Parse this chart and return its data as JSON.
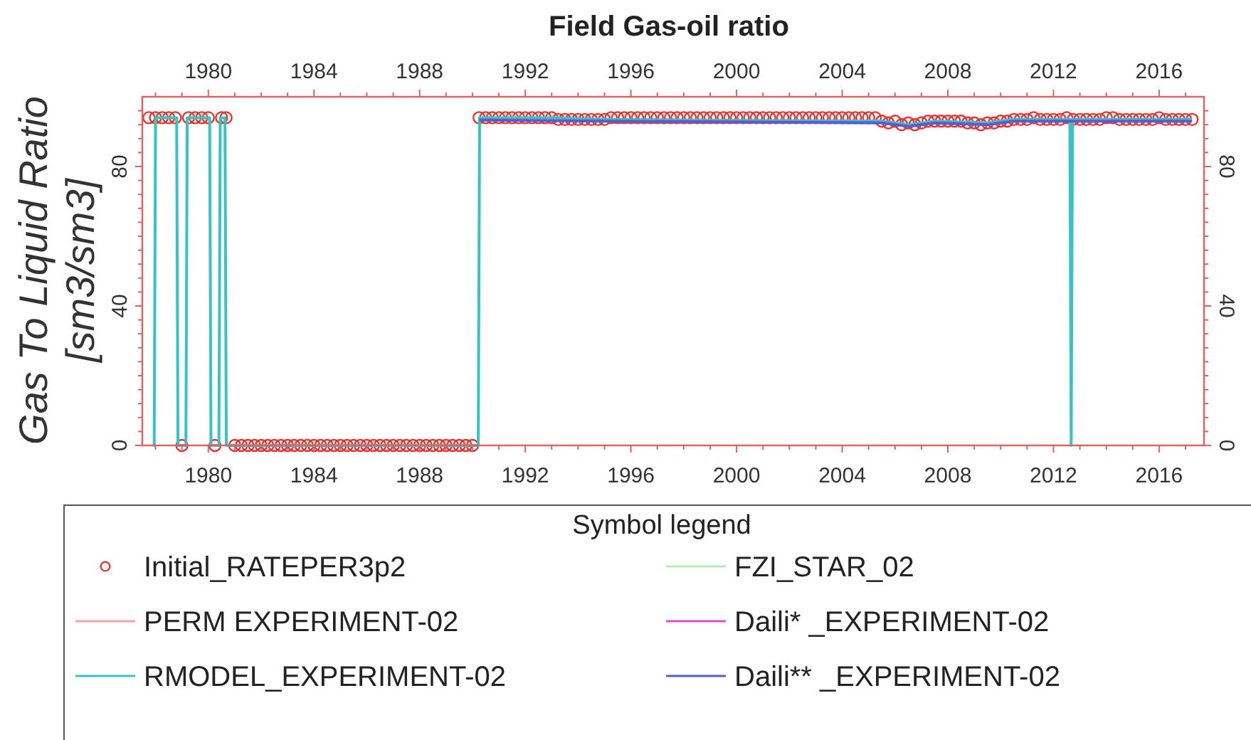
{
  "chart_data": {
    "type": "line",
    "title": "Field Gas-oil ratio",
    "ylabel": "Gas To Liquid Ratio\n[sm3/sm3]",
    "legend_title": "Symbol legend",
    "legend": "bottom",
    "xlim": [
      1977.5,
      2017.7
    ],
    "x2lim": [
      1977.5,
      2017.7
    ],
    "ylim": [
      0,
      100
    ],
    "y2lim": [
      0,
      100
    ],
    "xticks": [
      {
        "value": 1978,
        "label": null
      },
      {
        "value": 1979,
        "label": null
      },
      1980,
      {
        "value": 1981,
        "label": null
      },
      {
        "value": 1982,
        "label": null
      },
      {
        "value": 1983,
        "label": null
      },
      1984,
      {
        "value": 1985,
        "label": null
      },
      {
        "value": 1986,
        "label": null
      },
      {
        "value": 1987,
        "label": null
      },
      1988,
      {
        "value": 1989,
        "label": null
      },
      {
        "value": 1990,
        "label": null
      },
      {
        "value": 1991,
        "label": null
      },
      1992,
      {
        "value": 1993,
        "label": null
      },
      {
        "value": 1994,
        "label": null
      },
      {
        "value": 1995,
        "label": null
      },
      1996,
      {
        "value": 1997,
        "label": null
      },
      {
        "value": 1998,
        "label": null
      },
      {
        "value": 1999,
        "label": null
      },
      2000,
      {
        "value": 2001,
        "label": null
      },
      {
        "value": 2002,
        "label": null
      },
      {
        "value": 2003,
        "label": null
      },
      2004,
      {
        "value": 2005,
        "label": null
      },
      {
        "value": 2006,
        "label": null
      },
      {
        "value": 2007,
        "label": null
      },
      2008,
      {
        "value": 2009,
        "label": null
      },
      {
        "value": 2010,
        "label": null
      },
      {
        "value": 2011,
        "label": null
      },
      2012,
      {
        "value": 2013,
        "label": null
      },
      {
        "value": 2014,
        "label": null
      },
      {
        "value": 2015,
        "label": null
      },
      2016,
      {
        "value": 2017,
        "label": null
      }
    ],
    "x2ticks": [
      {
        "value": 1978,
        "label": null
      },
      {
        "value": 1979,
        "label": null
      },
      1980,
      {
        "value": 1981,
        "label": null
      },
      {
        "value": 1982,
        "label": null
      },
      {
        "value": 1983,
        "label": null
      },
      1984,
      {
        "value": 1985,
        "label": null
      },
      {
        "value": 1986,
        "label": null
      },
      {
        "value": 1987,
        "label": null
      },
      1988,
      {
        "value": 1989,
        "label": null
      },
      {
        "value": 1990,
        "label": null
      },
      {
        "value": 1991,
        "label": null
      },
      1992,
      {
        "value": 1993,
        "label": null
      },
      {
        "value": 1994,
        "label": null
      },
      {
        "value": 1995,
        "label": null
      },
      1996,
      {
        "value": 1997,
        "label": null
      },
      {
        "value": 1998,
        "label": null
      },
      {
        "value": 1999,
        "label": null
      },
      2000,
      {
        "value": 2001,
        "label": null
      },
      {
        "value": 2002,
        "label": null
      },
      {
        "value": 2003,
        "label": null
      },
      2004,
      {
        "value": 2005,
        "label": null
      },
      {
        "value": 2006,
        "label": null
      },
      {
        "value": 2007,
        "label": null
      },
      2008,
      {
        "value": 2009,
        "label": null
      },
      {
        "value": 2010,
        "label": null
      },
      {
        "value": 2011,
        "label": null
      },
      2012,
      {
        "value": 2013,
        "label": null
      },
      {
        "value": 2014,
        "label": null
      },
      {
        "value": 2015,
        "label": null
      },
      2016,
      {
        "value": 2017,
        "label": null
      }
    ],
    "yticks": [
      0,
      {
        "value": 4,
        "label": null
      },
      {
        "value": 8,
        "label": null
      },
      {
        "value": 12,
        "label": null
      },
      {
        "value": 16,
        "label": null
      },
      {
        "value": 20,
        "label": null
      },
      {
        "value": 24,
        "label": null
      },
      {
        "value": 28,
        "label": null
      },
      {
        "value": 32,
        "label": null
      },
      {
        "value": 36,
        "label": null
      },
      40,
      {
        "value": 44,
        "label": null
      },
      {
        "value": 48,
        "label": null
      },
      {
        "value": 52,
        "label": null
      },
      {
        "value": 56,
        "label": null
      },
      {
        "value": 60,
        "label": null
      },
      {
        "value": 64,
        "label": null
      },
      {
        "value": 68,
        "label": null
      },
      {
        "value": 72,
        "label": null
      },
      {
        "value": 76,
        "label": null
      },
      80,
      {
        "value": 84,
        "label": null
      },
      {
        "value": 88,
        "label": null
      },
      {
        "value": 92,
        "label": null
      },
      {
        "value": 96,
        "label": null
      }
    ],
    "y2ticks": [
      0,
      {
        "value": 4,
        "label": null
      },
      {
        "value": 8,
        "label": null
      },
      {
        "value": 12,
        "label": null
      },
      {
        "value": 16,
        "label": null
      },
      {
        "value": 20,
        "label": null
      },
      {
        "value": 24,
        "label": null
      },
      {
        "value": 28,
        "label": null
      },
      {
        "value": 32,
        "label": null
      },
      {
        "value": 36,
        "label": null
      },
      40,
      {
        "value": 44,
        "label": null
      },
      {
        "value": 48,
        "label": null
      },
      {
        "value": 52,
        "label": null
      },
      {
        "value": 56,
        "label": null
      },
      {
        "value": 60,
        "label": null
      },
      {
        "value": 64,
        "label": null
      },
      {
        "value": 68,
        "label": null
      },
      {
        "value": 72,
        "label": null
      },
      {
        "value": 76,
        "label": null
      },
      80,
      {
        "value": 84,
        "label": null
      },
      {
        "value": 88,
        "label": null
      },
      {
        "value": 92,
        "label": null
      },
      {
        "value": 96,
        "label": null
      }
    ],
    "series": [
      {
        "name": "Initial_RATEPER3p2",
        "type": "scatter",
        "marker": "circle",
        "color": "#e8322e",
        "x": [
          1977.75,
          1978,
          1978.25,
          1978.5,
          1978.75,
          1979,
          1979.25,
          1979.5,
          1979.75,
          1980,
          1980.25,
          1980.5,
          1980.67,
          1981,
          1981.25,
          1981.5,
          1981.75,
          1982,
          1982.25,
          1982.5,
          1982.75,
          1983,
          1983.25,
          1983.5,
          1983.75,
          1984,
          1984.25,
          1984.5,
          1984.75,
          1985,
          1985.25,
          1985.5,
          1985.75,
          1986,
          1986.25,
          1986.5,
          1986.75,
          1987,
          1987.25,
          1987.5,
          1987.75,
          1988,
          1988.25,
          1988.5,
          1988.75,
          1989,
          1989.25,
          1989.5,
          1989.75,
          1990,
          1990.25,
          1990.5,
          1990.75,
          1991,
          1991.25,
          1991.5,
          1991.75,
          1992,
          1992.25,
          1992.5,
          1992.75,
          1993,
          1993.25,
          1993.5,
          1993.75,
          1994,
          1994.25,
          1994.5,
          1994.75,
          1995,
          1995.25,
          1995.5,
          1995.75,
          1996,
          1996.25,
          1996.5,
          1996.75,
          1997,
          1997.25,
          1997.5,
          1997.75,
          1998,
          1998.25,
          1998.5,
          1998.75,
          1999,
          1999.25,
          1999.5,
          1999.75,
          2000,
          2000.25,
          2000.5,
          2000.75,
          2001,
          2001.25,
          2001.5,
          2001.75,
          2002,
          2002.25,
          2002.5,
          2002.75,
          2003,
          2003.25,
          2003.5,
          2003.75,
          2004,
          2004.25,
          2004.5,
          2004.75,
          2005,
          2005.25,
          2005.5,
          2005.75,
          2006,
          2006.25,
          2006.5,
          2006.75,
          2007,
          2007.25,
          2007.5,
          2007.75,
          2008,
          2008.25,
          2008.5,
          2008.75,
          2009,
          2009.25,
          2009.5,
          2009.75,
          2010,
          2010.25,
          2010.5,
          2010.75,
          2011,
          2011.25,
          2011.5,
          2011.75,
          2012,
          2012.25,
          2012.5,
          2012.75,
          2013,
          2013.25,
          2013.5,
          2013.75,
          2014,
          2014.25,
          2014.5,
          2014.75,
          2015,
          2015.25,
          2015.5,
          2015.75,
          2016,
          2016.25,
          2016.5,
          2016.75,
          2017,
          2017.25
        ],
        "values": [
          94,
          94,
          94,
          94,
          94,
          0,
          94,
          94,
          94,
          94,
          0,
          94,
          94,
          0,
          0,
          0,
          0,
          0,
          0,
          0,
          0,
          0,
          0,
          0,
          0,
          0,
          0,
          0,
          0,
          0,
          0,
          0,
          0,
          0,
          0,
          0,
          0,
          0,
          0,
          0,
          0,
          0,
          0,
          0,
          0,
          0,
          0,
          0,
          0,
          0,
          94,
          94,
          94,
          94,
          94,
          94,
          94,
          94,
          94,
          94,
          94,
          94,
          93.5,
          93.5,
          93.5,
          93.5,
          93.5,
          93.5,
          93.5,
          93.5,
          94,
          94,
          94,
          94,
          94,
          94,
          94,
          94,
          94,
          94,
          94,
          94,
          94,
          94,
          94,
          94,
          94,
          94,
          94,
          94,
          94,
          94,
          94,
          94,
          94,
          94,
          94,
          94,
          94,
          94,
          94,
          94,
          94,
          94,
          94,
          94,
          94,
          94,
          94,
          94,
          94,
          93,
          92.5,
          93,
          92,
          92.5,
          92,
          92.5,
          93,
          93,
          93,
          93,
          93,
          93,
          92.5,
          92.5,
          92,
          92.5,
          92.5,
          93,
          93,
          93.5,
          93.5,
          93.5,
          94,
          93.5,
          93.5,
          93.5,
          93.5,
          94,
          93.5,
          93.5,
          93.5,
          93.5,
          93.5,
          94,
          94,
          93.5,
          93.5,
          93.5,
          93.5,
          93.5,
          93.5,
          94,
          93.5,
          93.5,
          93.5,
          93.5,
          93.5
        ]
      },
      {
        "name": "PERM EXPERIMENT-02",
        "color": "#f5a3a3"
      },
      {
        "name": "RMODEL_EXPERIMENT-02",
        "color": "#36c3c3",
        "x": [
          1977.95,
          1978,
          1978.8,
          1978.85,
          1979.15,
          1979.2,
          1980.05,
          1980.1,
          1980.4,
          1980.45,
          1980.63,
          1980.68,
          1990.22,
          1990.27,
          1993,
          1995,
          2005.5,
          2006.5,
          2007.5,
          2009.5,
          2010.5,
          2012.62,
          2012.67,
          2012.72,
          2017.2
        ],
        "values": [
          0,
          94,
          94,
          0,
          0,
          94,
          94,
          0,
          0,
          94,
          94,
          0,
          0,
          94,
          94,
          93.5,
          93,
          92,
          93,
          92.5,
          93.5,
          93.5,
          0,
          93.5,
          93.5
        ]
      },
      {
        "name": "FZI_STAR_02",
        "color": "#b4eab4"
      },
      {
        "name": "Daili* _EXPERIMENT-02",
        "color": "#d64fd6"
      },
      {
        "name": "Daili** _EXPERIMENT-02",
        "color": "#5a5ad6",
        "x": [
          1990.3,
          1995,
          2005.5,
          2006.5,
          2007.5,
          2009.5,
          2010.5,
          2017.2
        ],
        "values": [
          93.3,
          93,
          92.5,
          91.5,
          92.5,
          92,
          93,
          93
        ]
      }
    ]
  }
}
